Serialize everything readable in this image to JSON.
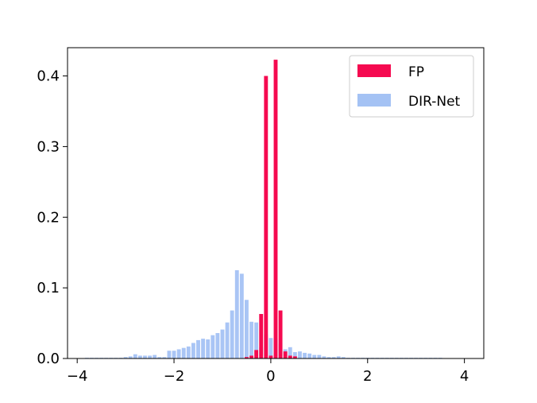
{
  "chart_data": {
    "type": "bar",
    "title": "",
    "xlabel": "",
    "ylabel": "",
    "xlim": [
      -4.2,
      4.4
    ],
    "ylim": [
      0,
      0.44
    ],
    "x_ticks": [
      -4,
      -2,
      0,
      2,
      4
    ],
    "x_tick_labels": [
      "−4",
      "−2",
      "0",
      "2",
      "4"
    ],
    "y_ticks": [
      0,
      0.1,
      0.2,
      0.3,
      0.4
    ],
    "y_tick_labels": [
      "0.0",
      "0.1",
      "0.2",
      "0.3",
      "0.4"
    ],
    "grid": false,
    "legend_position": "top-right",
    "series": [
      {
        "name": "FP",
        "color": "#f50a50",
        "x": [
          -0.5,
          -0.4,
          -0.3,
          -0.2,
          -0.1,
          0.0,
          0.1,
          0.2,
          0.3,
          0.4,
          0.5
        ],
        "values": [
          0.002,
          0.004,
          0.012,
          0.063,
          0.4,
          0.004,
          0.423,
          0.068,
          0.01,
          0.004,
          0.003
        ]
      },
      {
        "name": "DIR-Net",
        "color": "#a4c2f4",
        "x": [
          -3.8,
          -3.7,
          -3.6,
          -3.5,
          -3.4,
          -3.3,
          -3.2,
          -3.1,
          -3.0,
          -2.9,
          -2.8,
          -2.7,
          -2.6,
          -2.5,
          -2.4,
          -2.3,
          -2.2,
          -2.1,
          -2.0,
          -1.9,
          -1.8,
          -1.7,
          -1.6,
          -1.5,
          -1.4,
          -1.3,
          -1.2,
          -1.1,
          -1.0,
          -0.9,
          -0.8,
          -0.7,
          -0.6,
          -0.5,
          -0.4,
          -0.3,
          -0.2,
          -0.1,
          0.0,
          0.1,
          0.2,
          0.3,
          0.4,
          0.5,
          0.6,
          0.7,
          0.8,
          0.9,
          1.0,
          1.1,
          1.2,
          1.3,
          1.4,
          1.5,
          1.6,
          1.7,
          1.8,
          1.9,
          2.0,
          2.1,
          2.2,
          2.3,
          2.4,
          2.5,
          2.6,
          2.7,
          2.8,
          2.9,
          3.0,
          3.1,
          3.2,
          3.3,
          3.4,
          3.5
        ],
        "values": [
          0.001,
          0.001,
          0.001,
          0.001,
          0.001,
          0.001,
          0.001,
          0.001,
          0.002,
          0.003,
          0.006,
          0.004,
          0.004,
          0.004,
          0.005,
          0.002,
          0.002,
          0.011,
          0.011,
          0.013,
          0.015,
          0.017,
          0.022,
          0.026,
          0.028,
          0.027,
          0.033,
          0.036,
          0.041,
          0.051,
          0.068,
          0.125,
          0.12,
          0.083,
          0.052,
          0.051,
          0.016,
          0.034,
          0.029,
          0.029,
          0.021,
          0.013,
          0.016,
          0.009,
          0.01,
          0.008,
          0.007,
          0.005,
          0.005,
          0.003,
          0.002,
          0.002,
          0.003,
          0.002,
          0.001,
          0.001,
          0.001,
          0.001,
          0.001,
          0.001,
          0.001,
          0.001,
          0.001,
          0.001,
          0.001,
          0.001,
          0.001,
          0.001,
          0.001,
          0.001,
          0.001,
          0.001,
          0.001,
          0.001
        ]
      }
    ]
  }
}
